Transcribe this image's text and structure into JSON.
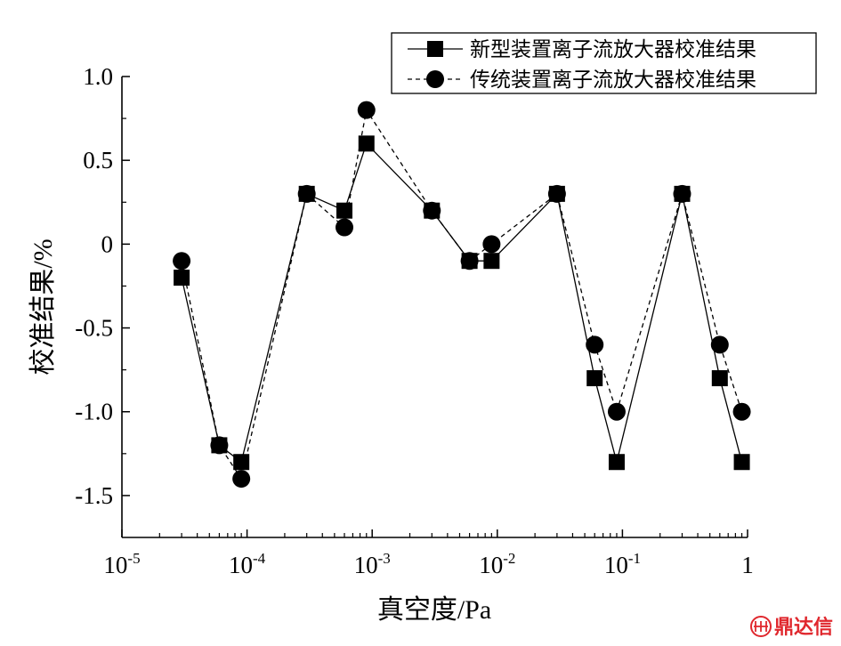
{
  "chart_data": {
    "type": "line",
    "title": "",
    "xlabel": "真空度/Pa",
    "ylabel": "校准结果/%",
    "xscale": "log",
    "xlim_exp": [
      -5,
      0
    ],
    "x_ticks": [
      {
        "base": "10",
        "exp": "-5"
      },
      {
        "base": "10",
        "exp": "-4"
      },
      {
        "base": "10",
        "exp": "-3"
      },
      {
        "base": "10",
        "exp": "-2"
      },
      {
        "base": "10",
        "exp": "-1"
      },
      {
        "base": "1",
        "exp": ""
      }
    ],
    "ylim": [
      -1.75,
      1.0
    ],
    "y_ticks": [
      1.0,
      0.5,
      0,
      -0.5,
      -1.0,
      -1.5
    ],
    "y_tick_labels": [
      "1.0",
      "0.5",
      "0",
      "-0.5",
      "-1.0",
      "-1.5"
    ],
    "grid": false,
    "legend_position": "top-right",
    "x": [
      3e-05,
      6e-05,
      9e-05,
      0.0003,
      0.0006,
      0.0009,
      0.003,
      0.006,
      0.009,
      0.03,
      0.06,
      0.09,
      0.3,
      0.6,
      0.9
    ],
    "series": [
      {
        "name": "新型装置离子流放大器校准结果",
        "marker": "square",
        "line": "solid",
        "values": [
          -0.2,
          -1.2,
          -1.3,
          0.3,
          0.2,
          0.6,
          0.2,
          -0.1,
          -0.1,
          0.3,
          -0.8,
          -1.3,
          0.3,
          -0.8,
          -1.3
        ]
      },
      {
        "name": "传统装置离子流放大器校准结果",
        "marker": "circle",
        "line": "dashed",
        "values": [
          -0.1,
          -1.2,
          -1.4,
          0.3,
          0.1,
          0.8,
          0.2,
          -0.1,
          0.0,
          0.3,
          -0.6,
          -1.0,
          0.3,
          -0.6,
          -1.0
        ]
      }
    ]
  },
  "watermark": {
    "text": "鼎达信",
    "color": "#e0282e"
  }
}
